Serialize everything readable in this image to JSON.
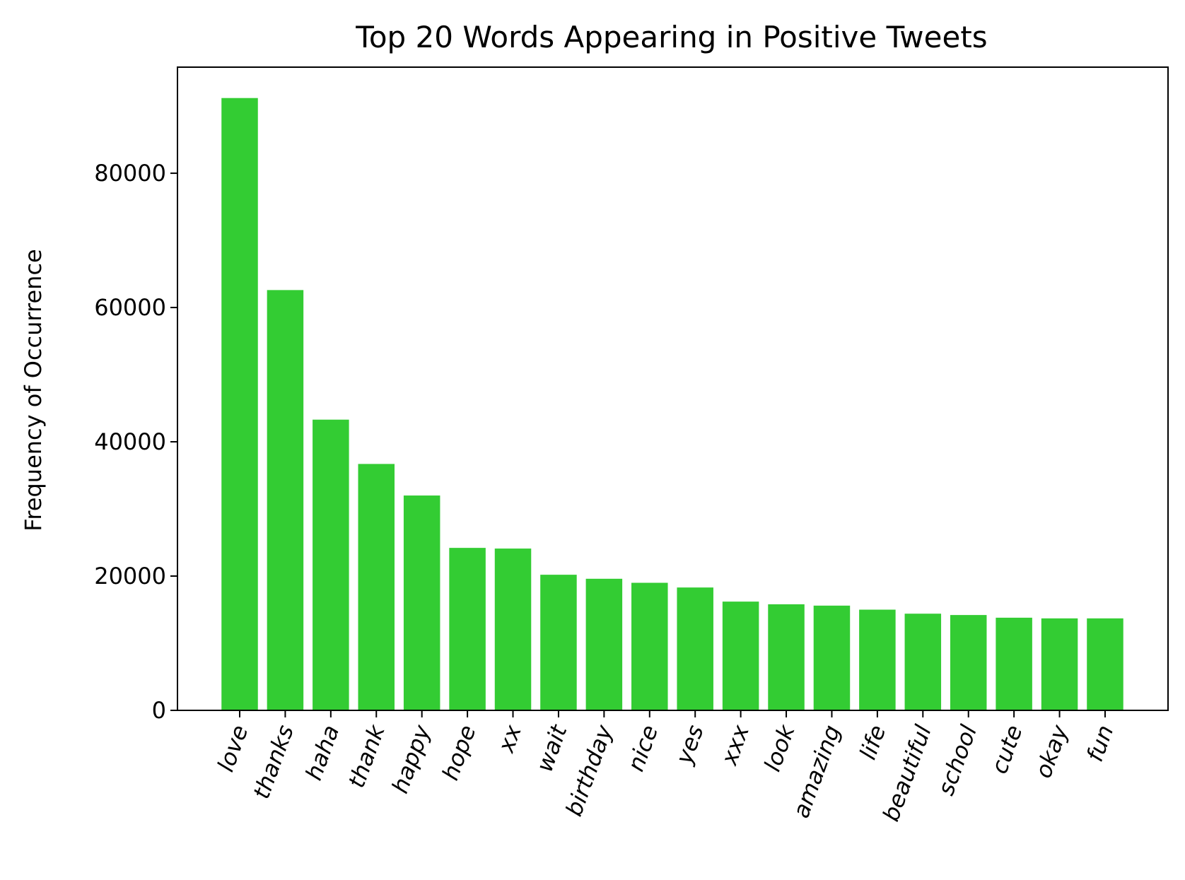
{
  "chart_data": {
    "type": "bar",
    "title": "Top 20 Words Appearing in Positive Tweets",
    "xlabel": "",
    "ylabel": "Frequency of Occurrence",
    "categories": [
      "love",
      "thanks",
      "haha",
      "thank",
      "happy",
      "hope",
      "xx",
      "wait",
      "birthday",
      "nice",
      "yes",
      "xxx",
      "look",
      "amazing",
      "life",
      "beautiful",
      "school",
      "cute",
      "okay",
      "fun"
    ],
    "values": [
      91200,
      62600,
      43300,
      36700,
      32000,
      24200,
      24100,
      20200,
      19600,
      19000,
      18300,
      16200,
      15800,
      15600,
      15000,
      14400,
      14200,
      13800,
      13700,
      13700
    ],
    "ylim": [
      0,
      95800
    ],
    "yticks": [
      0,
      20000,
      40000,
      60000,
      80000
    ],
    "bar_color": "#33cc33",
    "grid": false,
    "legend": "none"
  }
}
